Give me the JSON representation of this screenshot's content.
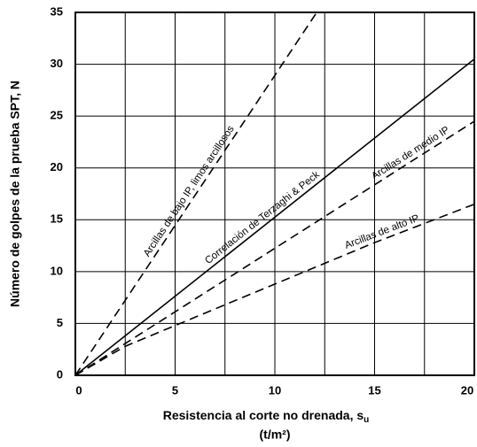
{
  "chart_data": {
    "type": "line",
    "xlabel": "Resistencia al corte no drenada, s",
    "xlabel_sub": "u",
    "xlabel_unit": "(t/m²)",
    "ylabel": "Número de golpes de la prueba SPT, N",
    "xlim": [
      0,
      20
    ],
    "ylim": [
      0,
      35
    ],
    "xticks": [
      0,
      5,
      10,
      15,
      20
    ],
    "yticks": [
      0,
      5,
      10,
      15,
      20,
      25,
      30,
      35
    ],
    "xgrid_minor": [
      2.5,
      7.5,
      12.5,
      17.5
    ],
    "grid": true,
    "series": [
      {
        "name": "Arcillas de bajo IP, limos arcillosos",
        "color": "#000000",
        "dashed": true,
        "x": [
          0,
          12.1
        ],
        "values": [
          0,
          35
        ]
      },
      {
        "name": "Correlación de Terzaghi & Peck",
        "color": "#000000",
        "dashed": false,
        "x": [
          0,
          20
        ],
        "values": [
          0,
          30.5
        ]
      },
      {
        "name": "Arcillas de medio IP",
        "color": "#000000",
        "dashed": true,
        "x": [
          0,
          20
        ],
        "values": [
          0,
          24.5
        ]
      },
      {
        "name": "Arcillas de alto IP",
        "color": "#000000",
        "dashed": true,
        "x": [
          0,
          2.5,
          5,
          10,
          15,
          20
        ],
        "values": [
          0,
          2.8,
          4.8,
          8.8,
          12.8,
          16.5
        ]
      }
    ]
  }
}
